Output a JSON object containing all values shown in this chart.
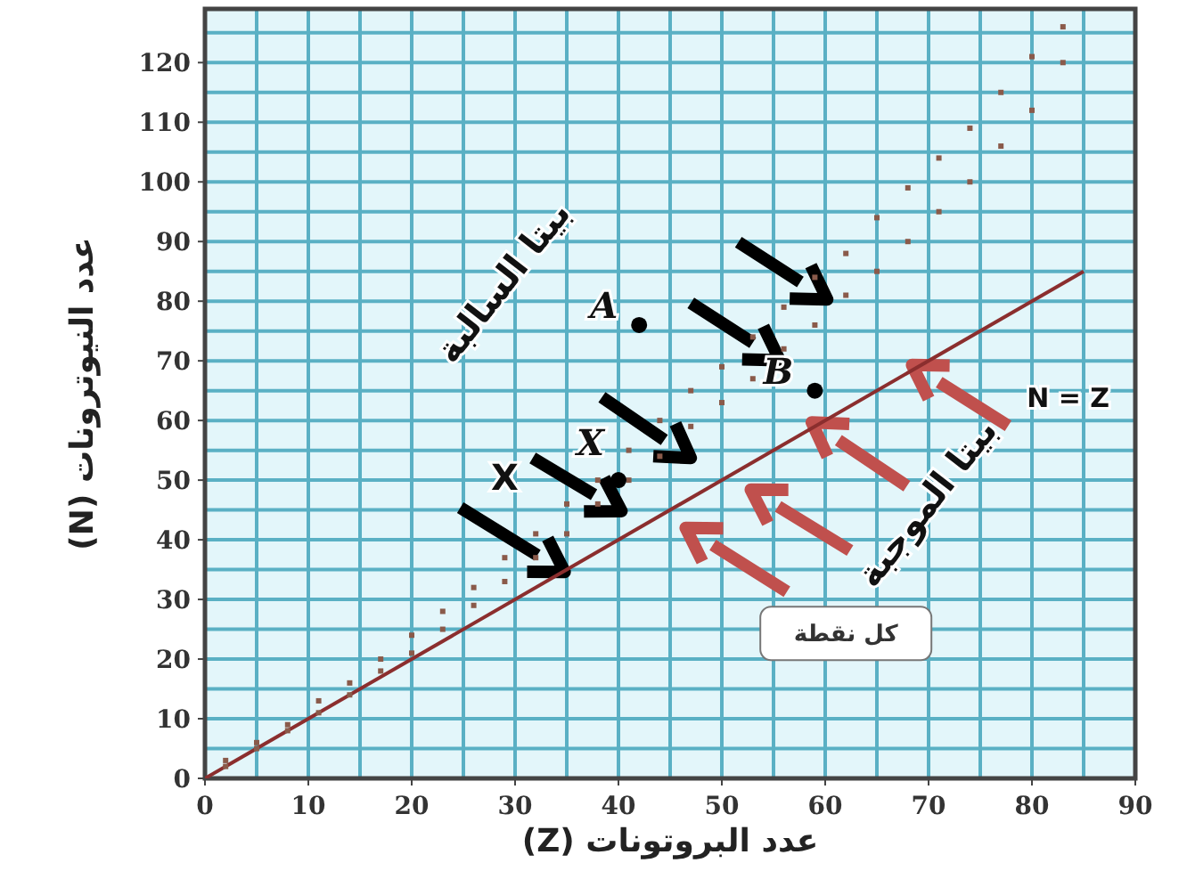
{
  "chart_data": {
    "type": "scatter",
    "xlabel": "عدد البروتونات (Z)",
    "ylabel": "عدد النيوترونات (N)",
    "xlim": [
      0,
      90
    ],
    "ylim": [
      0,
      129
    ],
    "xticks": [
      0,
      10,
      20,
      30,
      40,
      50,
      60,
      70,
      80,
      90
    ],
    "yticks": [
      0,
      10,
      20,
      30,
      40,
      50,
      60,
      70,
      80,
      90,
      100,
      110,
      120
    ],
    "grid": true,
    "series": [
      {
        "type": "scatter",
        "marker": "square",
        "color": "#8a5a4a",
        "x": [
          2,
          2,
          5,
          5,
          8,
          8,
          11,
          11,
          14,
          14,
          17,
          17,
          20,
          20,
          23,
          23,
          26,
          26,
          29,
          29,
          32,
          32,
          35,
          35,
          38,
          38,
          41,
          41,
          44,
          44,
          47,
          47,
          50,
          50,
          53,
          53,
          56,
          56,
          59,
          59,
          62,
          62,
          65,
          65,
          68,
          68,
          71,
          71,
          74,
          74,
          77,
          77,
          80,
          80,
          83,
          83
        ],
        "values": [
          2,
          3,
          5,
          6,
          8,
          9,
          11,
          13,
          14,
          16,
          18,
          20,
          21,
          24,
          25,
          28,
          29,
          32,
          33,
          37,
          37,
          41,
          41,
          46,
          46,
          50,
          50,
          55,
          54,
          60,
          59,
          65,
          63,
          69,
          67,
          74,
          72,
          79,
          76,
          84,
          81,
          88,
          85,
          94,
          90,
          99,
          95,
          104,
          100,
          109,
          106,
          115,
          112,
          121,
          120,
          126
        ]
      },
      {
        "type": "line",
        "color": "#8b2e2e",
        "x": [
          0,
          85
        ],
        "values": [
          0,
          85
        ]
      },
      {
        "type": "scatter",
        "marker": "circle",
        "color": "#000000",
        "x": [
          42,
          59,
          40
        ],
        "values": [
          76,
          65,
          50
        ]
      }
    ],
    "annotations": [
      {
        "text": "A",
        "x": 42,
        "y": 76
      },
      {
        "text": "B",
        "x": 59,
        "y": 65
      },
      {
        "text": "X",
        "x": 40,
        "y": 50
      },
      "X",
      "بيتا السالبة",
      "بيتا الموجبة",
      "N = Z",
      "كل نقطة"
    ]
  }
}
